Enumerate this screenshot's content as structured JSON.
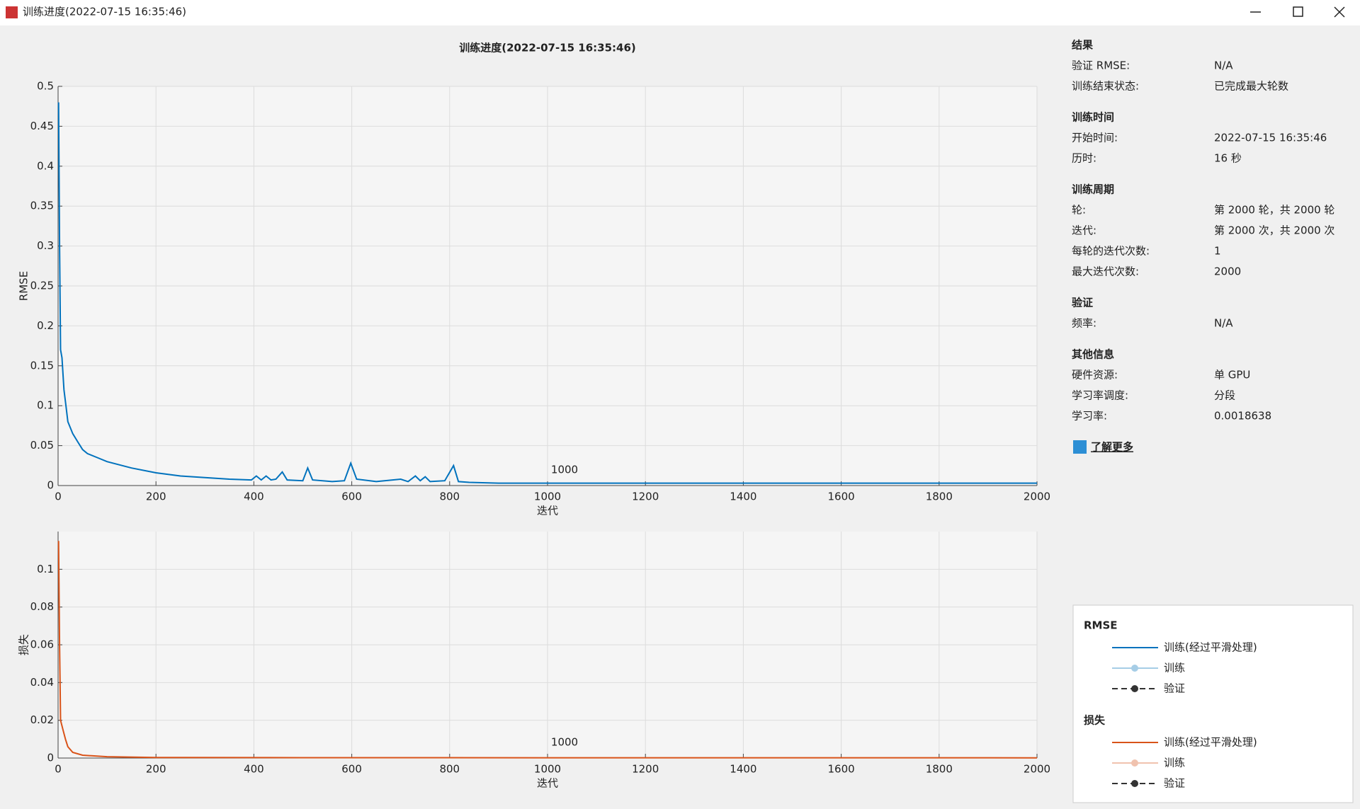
{
  "window": {
    "title": "训练进度(2022-07-15 16:35:46)"
  },
  "chart_data": [
    {
      "type": "line",
      "title": "训练进度(2022-07-15 16:35:46)",
      "x_label": "迭代",
      "y_label": "RMSE",
      "annotation": "1000",
      "xlim": [
        0,
        2000
      ],
      "xticks": [
        0,
        200,
        400,
        600,
        800,
        1000,
        1200,
        1400,
        1600,
        1800,
        2000
      ],
      "ylim": [
        0,
        0.5
      ],
      "yticks": [
        0,
        0.05,
        0.1,
        0.15,
        0.2,
        0.25,
        0.3,
        0.35,
        0.4,
        0.45,
        0.5
      ],
      "grid": true,
      "series": [
        {
          "color": "#0072bd",
          "x": [
            1,
            3,
            5,
            8,
            12,
            16,
            20,
            30,
            40,
            50,
            60,
            80,
            100,
            150,
            200,
            250,
            300,
            350,
            395,
            405,
            415,
            425,
            435,
            445,
            458,
            468,
            500,
            510,
            520,
            560,
            585,
            598,
            610,
            650,
            700,
            715,
            730,
            740,
            750,
            760,
            790,
            808,
            818,
            840,
            900,
            1000,
            1500,
            2000
          ],
          "values": [
            0.48,
            0.3,
            0.17,
            0.16,
            0.12,
            0.1,
            0.08,
            0.065,
            0.055,
            0.045,
            0.04,
            0.035,
            0.03,
            0.022,
            0.016,
            0.012,
            0.01,
            0.008,
            0.007,
            0.012,
            0.007,
            0.012,
            0.007,
            0.008,
            0.017,
            0.007,
            0.006,
            0.022,
            0.007,
            0.005,
            0.006,
            0.028,
            0.008,
            0.005,
            0.008,
            0.005,
            0.012,
            0.006,
            0.011,
            0.005,
            0.006,
            0.025,
            0.005,
            0.004,
            0.003,
            0.003,
            0.003,
            0.003
          ]
        }
      ]
    },
    {
      "type": "line",
      "x_label": "迭代",
      "y_label": "损失",
      "annotation": "1000",
      "xlim": [
        0,
        2000
      ],
      "xticks": [
        0,
        200,
        400,
        600,
        800,
        1000,
        1200,
        1400,
        1600,
        1800,
        2000
      ],
      "ylim": [
        0,
        0.12
      ],
      "yticks": [
        0,
        0.02,
        0.04,
        0.06,
        0.08,
        0.1
      ],
      "grid": true,
      "series": [
        {
          "color": "#d95319",
          "x": [
            1,
            3,
            5,
            10,
            15,
            20,
            30,
            50,
            100,
            200,
            500,
            2000
          ],
          "values": [
            0.115,
            0.06,
            0.02,
            0.015,
            0.01,
            0.006,
            0.003,
            0.0015,
            0.0007,
            0.0003,
            0.0002,
            0.0001
          ]
        }
      ]
    }
  ],
  "info": {
    "sections": [
      {
        "title": "结果",
        "rows": [
          [
            "验证 RMSE:",
            "N/A"
          ],
          [
            "训练结束状态:",
            "已完成最大轮数"
          ]
        ]
      },
      {
        "title": "训练时间",
        "rows": [
          [
            "开始时间:",
            "2022-07-15 16:35:46"
          ],
          [
            "历时:",
            "16 秒"
          ]
        ]
      },
      {
        "title": "训练周期",
        "rows": [
          [
            "轮:",
            "第 2000 轮，共 2000 轮"
          ],
          [
            "迭代:",
            "第 2000 次，共 2000 次"
          ],
          [
            "每轮的迭代次数:",
            "1"
          ],
          [
            "最大迭代次数:",
            "2000"
          ]
        ]
      },
      {
        "title": "验证",
        "rows": [
          [
            "频率:",
            "N/A"
          ]
        ]
      },
      {
        "title": "其他信息",
        "rows": [
          [
            "硬件资源:",
            "单 GPU"
          ],
          [
            "学习率调度:",
            "分段"
          ],
          [
            "学习率:",
            "0.0018638"
          ]
        ]
      }
    ],
    "link": "了解更多"
  },
  "legend": {
    "groups": [
      {
        "title": "RMSE",
        "items": [
          {
            "name": "训练(经过平滑处理)",
            "color": "#0072bd"
          },
          {
            "name": "训练",
            "color": "#a6cde6"
          },
          {
            "name": "验证",
            "color": "#333333"
          }
        ]
      },
      {
        "title": "损失",
        "items": [
          {
            "name": "训练(经过平滑处理)",
            "color": "#d95319"
          },
          {
            "name": "训练",
            "color": "#f0c2ae"
          },
          {
            "name": "验证",
            "color": "#333333"
          }
        ]
      }
    ]
  }
}
